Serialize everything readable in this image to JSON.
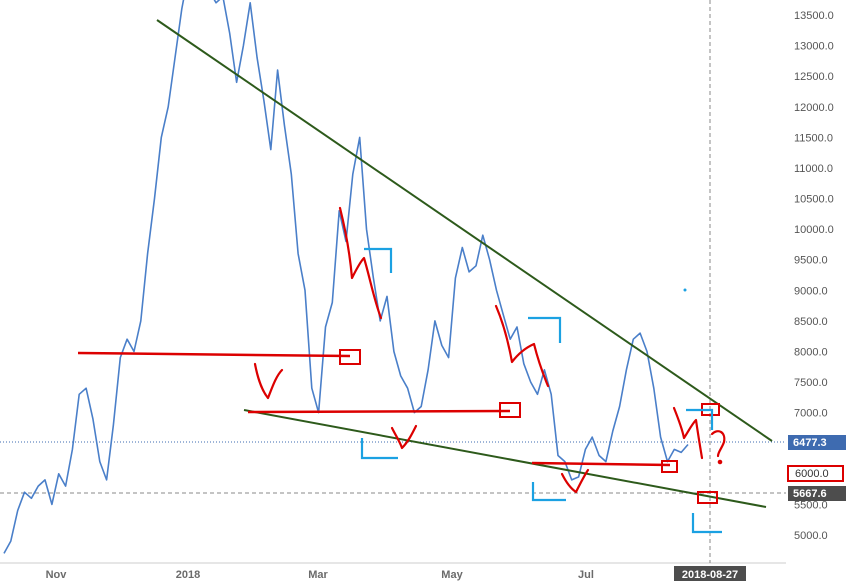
{
  "chart_data": {
    "type": "line",
    "title": "",
    "xlabel": "",
    "ylabel": "",
    "ylim": [
      4650,
      13800
    ],
    "grid": false,
    "y_ticks": [
      "13500.0",
      "13000.0",
      "12500.0",
      "12000.0",
      "11500.0",
      "11000.0",
      "10500.0",
      "10000.0",
      "9500.0",
      "9000.0",
      "8500.0",
      "8000.0",
      "7500.0",
      "7000.0",
      "6500.0",
      "6000.0",
      "5500.0",
      "5000.0"
    ],
    "x_ticks": [
      "Nov",
      "2018",
      "Mar",
      "May",
      "Jul"
    ],
    "x_cursor_label": "2018-08-27",
    "price_labels": {
      "last": "6477.3",
      "marked": "6000.0",
      "cursor": "5667.6"
    },
    "series": [
      {
        "type": "line",
        "x": [
          0,
          3,
          6,
          9,
          12,
          15,
          18,
          21,
          24,
          27,
          30,
          33,
          36,
          39,
          42,
          45,
          48,
          51,
          54,
          57,
          60,
          63,
          66,
          69,
          72,
          75,
          78,
          81,
          84,
          87,
          90,
          93,
          96,
          99,
          102,
          105,
          108,
          111,
          114,
          117,
          120,
          123,
          126,
          129,
          132,
          135,
          138,
          141,
          144,
          147,
          150,
          153,
          156,
          159,
          162,
          165,
          168,
          171,
          174,
          177,
          180,
          183,
          186,
          189,
          192,
          195,
          198,
          201,
          204,
          207,
          210,
          213,
          216,
          219,
          222,
          225,
          228,
          231,
          234,
          237,
          240,
          243,
          246,
          249,
          252,
          255,
          258,
          261,
          264,
          267,
          270,
          273,
          276,
          279,
          282,
          285,
          288,
          291,
          294,
          297,
          300
        ],
        "y": [
          4700,
          4900,
          5400,
          5700,
          5600,
          5800,
          5900,
          5500,
          6000,
          5800,
          6400,
          7300,
          7400,
          6900,
          6200,
          5900,
          6800,
          7900,
          8200,
          8000,
          8500,
          9600,
          10500,
          11500,
          12000,
          12800,
          13600,
          14200,
          14500,
          14000,
          13900,
          13700,
          13800,
          13200,
          12400,
          13000,
          13700,
          12800,
          12100,
          11300,
          12600,
          11700,
          10900,
          9600,
          9000,
          7400,
          7000,
          8400,
          8800,
          10300,
          9800,
          10900,
          11500,
          10000,
          9200,
          8500,
          8900,
          8000,
          7600,
          7400,
          7000,
          7100,
          7700,
          8500,
          8100,
          7900,
          9200,
          9700,
          9300,
          9400,
          9900,
          9500,
          9000,
          8600,
          8200,
          8400,
          7800,
          7500,
          7300,
          7700,
          7300,
          6300,
          6200,
          5900,
          5950,
          6400,
          6600,
          6300,
          6200,
          6700,
          7100,
          7700,
          8200,
          8300,
          8000,
          7400,
          6600,
          6200,
          6400,
          6350,
          6480
        ]
      }
    ],
    "annotations": [
      {
        "type": "trendline",
        "color": "#2d5a1b",
        "points": [
          [
            0,
            13700
          ],
          [
            290,
            6500
          ]
        ]
      },
      {
        "type": "trendline",
        "color": "#2d5a1b",
        "points": [
          [
            0,
            7050
          ],
          [
            290,
            5500
          ]
        ]
      },
      {
        "type": "hline",
        "color": "#dc0000",
        "y": 7950
      },
      {
        "type": "hline",
        "color": "#dc0000",
        "y": 6980
      },
      {
        "type": "hline",
        "color": "#dc0000",
        "y": 6150
      }
    ],
    "colors": {
      "series": "#4a7fc9",
      "trendline": "#2d5a1b",
      "annotation_red": "#dc0000",
      "annotation_blue": "#1ba1e2",
      "last_price_line": "#3e6bb0"
    }
  }
}
